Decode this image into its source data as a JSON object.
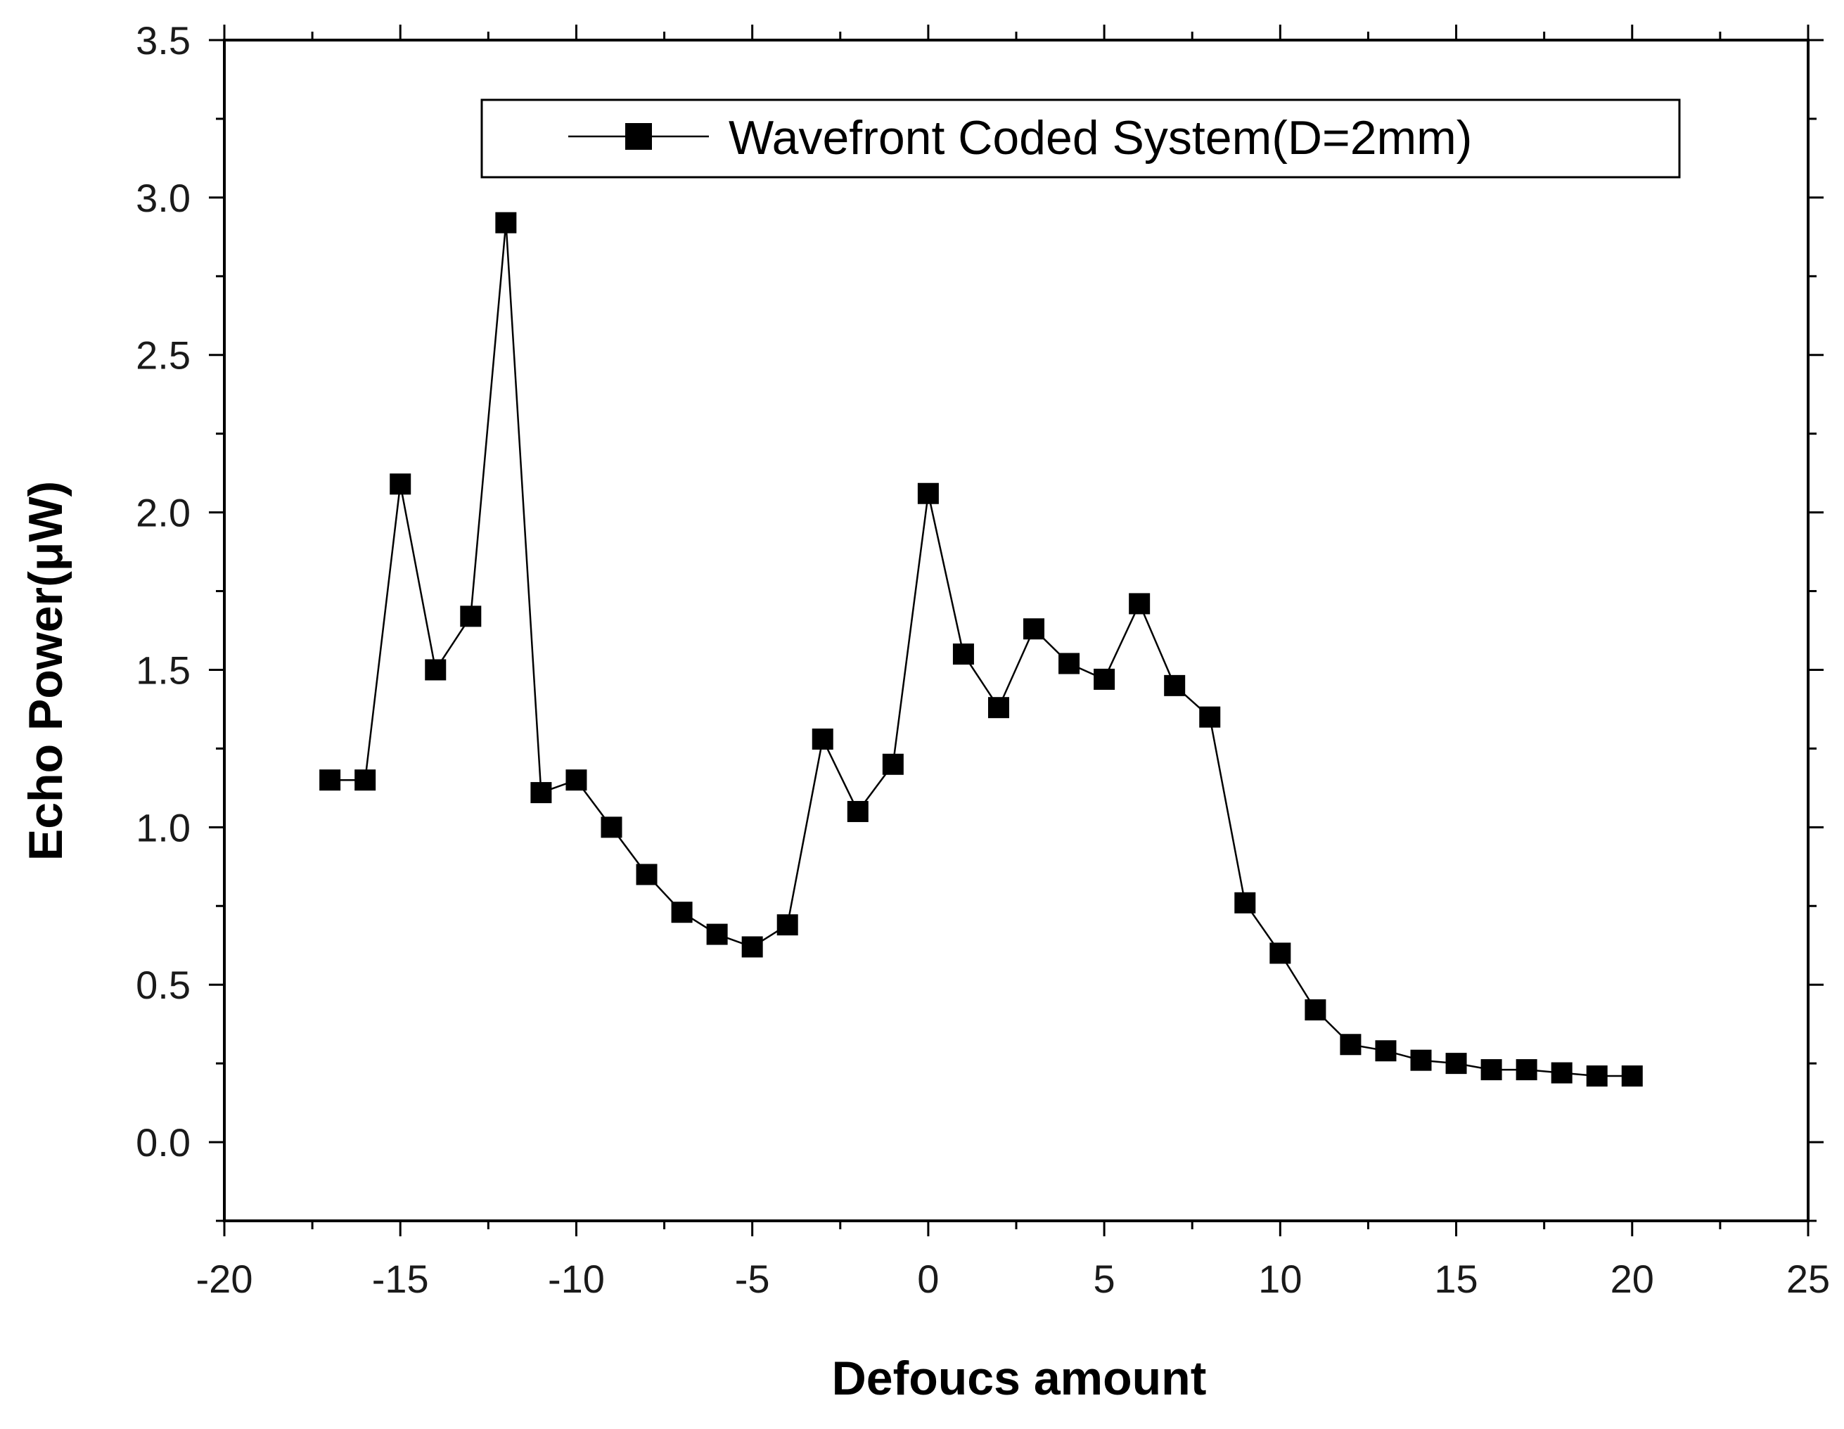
{
  "chart_data": {
    "type": "line",
    "title": "",
    "xlabel": "Defoucs amount",
    "ylabel": "Echo Power(μW)",
    "xlim": [
      -20,
      25
    ],
    "ylim": [
      -0.25,
      3.5
    ],
    "x_ticks": [
      -20,
      -15,
      -10,
      -5,
      0,
      5,
      10,
      15,
      20,
      25
    ],
    "x_tick_labels": [
      "-20",
      "-15",
      "-10",
      "-5",
      "0",
      "5",
      "10",
      "15",
      "20",
      "25"
    ],
    "y_ticks": [
      0.0,
      0.5,
      1.0,
      1.5,
      2.0,
      2.5,
      3.0,
      3.5
    ],
    "y_tick_labels": [
      "0.0",
      "0.5",
      "1.0",
      "1.5",
      "2.0",
      "2.5",
      "3.0",
      "3.5"
    ],
    "grid": false,
    "legend": {
      "position": "top",
      "entries": [
        "Wavefront Coded System(D=2mm)"
      ]
    },
    "series": [
      {
        "name": "Wavefront Coded System(D=2mm)",
        "marker": "square",
        "color": "#000000",
        "x": [
          -17,
          -16,
          -15,
          -14,
          -13,
          -12,
          -11,
          -10,
          -9,
          -8,
          -7,
          -6,
          -5,
          -4,
          -3,
          -2,
          -1,
          0,
          1,
          2,
          3,
          4,
          5,
          6,
          7,
          8,
          9,
          10,
          11,
          12,
          13,
          14,
          15,
          16,
          17,
          18,
          19,
          20
        ],
        "y": [
          1.15,
          1.15,
          2.09,
          1.5,
          1.67,
          2.92,
          1.11,
          1.15,
          1.0,
          0.85,
          0.73,
          0.66,
          0.62,
          0.69,
          1.28,
          1.05,
          1.2,
          2.06,
          1.55,
          1.38,
          1.63,
          1.52,
          1.47,
          1.71,
          1.45,
          1.35,
          0.76,
          0.6,
          0.42,
          0.31,
          0.29,
          0.26,
          0.25,
          0.23,
          0.23,
          0.22,
          0.21,
          0.21
        ]
      }
    ]
  }
}
